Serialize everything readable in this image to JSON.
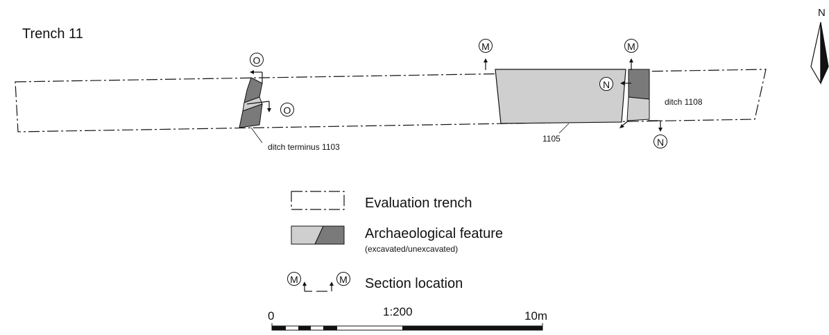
{
  "title": "Trench 11",
  "north": "N",
  "features": {
    "ditch_terminus": "ditch terminus 1103",
    "feature_1105": "1105",
    "ditch_1108": "ditch 1108"
  },
  "section_markers": {
    "o": "O",
    "m": "M",
    "n": "N"
  },
  "legend": {
    "trench": "Evaluation trench",
    "feature": "Archaeological feature",
    "feature_sub": "(excavated/unexcavated)",
    "section": "Section location"
  },
  "scale": {
    "start": "0",
    "ratio": "1:200",
    "end": "10m"
  },
  "colors": {
    "excavated": "#cfcfcf",
    "unexcavated": "#7a7a7a",
    "ink": "#111111"
  }
}
